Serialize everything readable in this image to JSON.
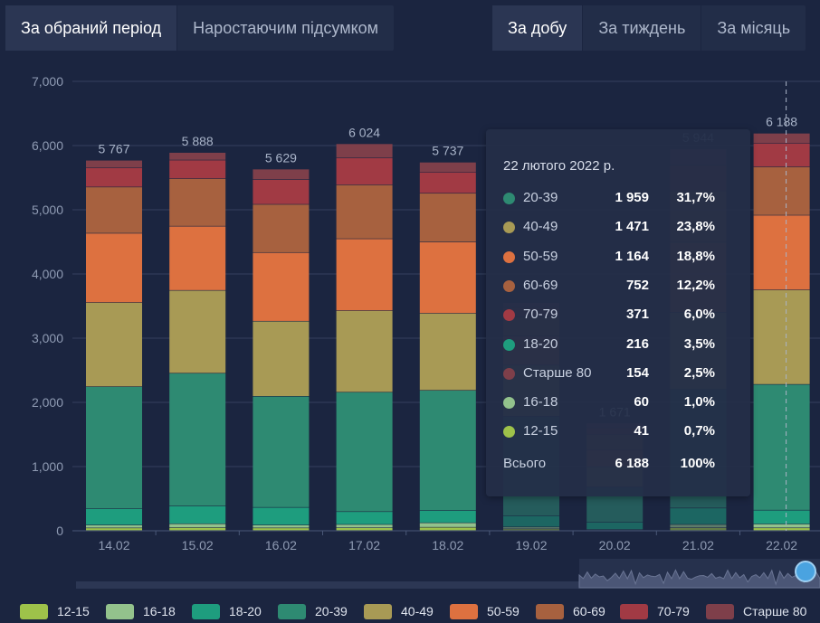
{
  "tabs_left": [
    {
      "label": "За обраний період",
      "active": true
    },
    {
      "label": "Наростаючим підсумком",
      "active": false
    }
  ],
  "tabs_right": [
    {
      "label": "За добу",
      "active": true
    },
    {
      "label": "За тиждень",
      "active": false
    },
    {
      "label": "За місяць",
      "active": false
    }
  ],
  "colors": {
    "12-15": "#9ec24a",
    "16-18": "#93c28c",
    "18-20": "#1e9d7e",
    "20-39": "#2e8a72",
    "40-49": "#a89a55",
    "50-59": "#dd7140",
    "60-69": "#a7613f",
    "70-79": "#a13a44",
    "Старше 80": "#7e3f4a"
  },
  "chart_data": {
    "type": "bar",
    "stacked": true,
    "categories": [
      "14.02",
      "15.02",
      "16.02",
      "17.02",
      "18.02",
      "19.02",
      "20.02",
      "21.02",
      "22.02"
    ],
    "totals": [
      "5 767",
      "5 888",
      "5 629",
      "6 024",
      "5 737",
      "",
      "1 671",
      "5 944",
      "6 188"
    ],
    "ylim": [
      0,
      7000
    ],
    "yticks": [
      "0",
      "1,000",
      "2,000",
      "3,000",
      "4,000",
      "5,000",
      "6,000",
      "7,000"
    ],
    "grid": true,
    "series": [
      {
        "name": "12-15",
        "values": [
          40,
          45,
          40,
          42,
          50,
          25,
          5,
          42,
          41
        ]
      },
      {
        "name": "16-18",
        "values": [
          45,
          60,
          45,
          52,
          70,
          30,
          10,
          52,
          60
        ]
      },
      {
        "name": "18-20",
        "values": [
          255,
          277,
          275,
          200,
          193,
          175,
          115,
          256,
          216
        ]
      },
      {
        "name": "20-39",
        "values": [
          1900,
          2068,
          1730,
          1860,
          1870,
          1550,
          550,
          1850,
          1959
        ]
      },
      {
        "name": "40-49",
        "values": [
          1310,
          1290,
          1170,
          1270,
          1200,
          800,
          310,
          1200,
          1471
        ]
      },
      {
        "name": "50-59",
        "values": [
          1080,
          1000,
          1070,
          1120,
          1110,
          450,
          270,
          1090,
          1164
        ]
      },
      {
        "name": "60-69",
        "values": [
          720,
          740,
          750,
          840,
          760,
          300,
          240,
          800,
          752
        ]
      },
      {
        "name": "70-79",
        "values": [
          300,
          290,
          385,
          420,
          330,
          150,
          100,
          400,
          371
        ]
      },
      {
        "name": "Старше 80",
        "values": [
          117,
          118,
          164,
          220,
          154,
          70,
          71,
          254,
          154
        ]
      }
    ],
    "highlight_index": 8
  },
  "tooltip": {
    "title": "22 лютого 2022 р.",
    "rows": [
      {
        "name": "20-39",
        "value": "1 959",
        "pct": "31,7%"
      },
      {
        "name": "40-49",
        "value": "1 471",
        "pct": "23,8%"
      },
      {
        "name": "50-59",
        "value": "1 164",
        "pct": "18,8%"
      },
      {
        "name": "60-69",
        "value": "752",
        "pct": "12,2%"
      },
      {
        "name": "70-79",
        "value": "371",
        "pct": "6,0%"
      },
      {
        "name": "18-20",
        "value": "216",
        "pct": "3,5%"
      },
      {
        "name": "Старше 80",
        "value": "154",
        "pct": "2,5%"
      },
      {
        "name": "16-18",
        "value": "60",
        "pct": "1,0%"
      },
      {
        "name": "12-15",
        "value": "41",
        "pct": "0,7%"
      }
    ],
    "total_label": "Всього",
    "total_value": "6 188",
    "total_pct": "100%"
  },
  "legend": [
    "12-15",
    "16-18",
    "18-20",
    "20-39",
    "40-49",
    "50-59",
    "60-69",
    "70-79",
    "Старше 80"
  ]
}
